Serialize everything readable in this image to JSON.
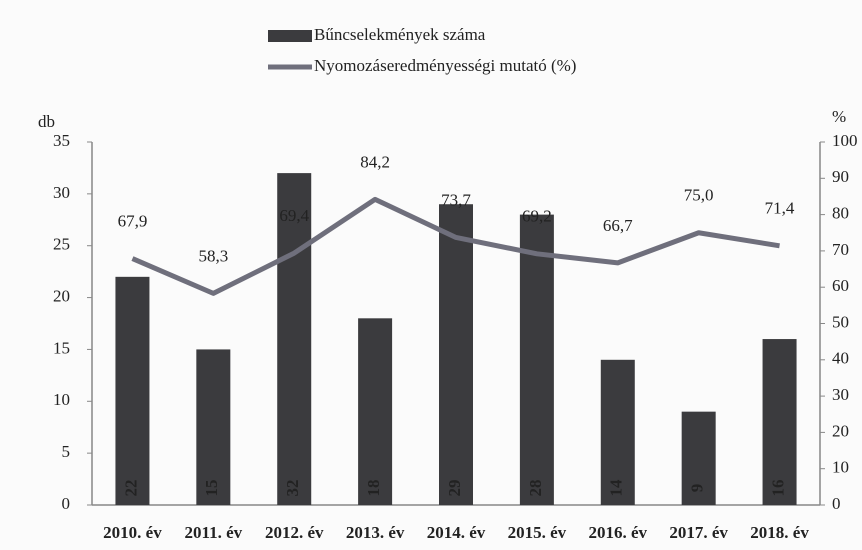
{
  "chart_data": {
    "type": "bar",
    "categories": [
      "2010. év",
      "2011. év",
      "2012. év",
      "2013. év",
      "2014. év",
      "2015. év",
      "2016. év",
      "2017. év",
      "2018. év"
    ],
    "y_label": "db",
    "y2_label": "%",
    "ylim": [
      0,
      35
    ],
    "yticks": [
      0,
      5,
      10,
      15,
      20,
      25,
      30,
      35
    ],
    "y2lim": [
      0,
      100
    ],
    "y2ticks": [
      0,
      10,
      20,
      30,
      40,
      50,
      60,
      70,
      80,
      90,
      100
    ],
    "legend": "top",
    "series": [
      {
        "name": "Bűncselekmények száma",
        "type": "bar",
        "color": "#3b3b3e",
        "values": [
          22,
          15,
          32,
          18,
          29,
          28,
          14,
          9,
          16
        ]
      },
      {
        "name": "Nyomozáseredményességi mutató (%)",
        "type": "line",
        "axis": "y2",
        "color": "#6f6f7c",
        "values": [
          67.9,
          58.3,
          69.4,
          84.2,
          73.7,
          69.2,
          66.7,
          75.0,
          71.4
        ],
        "value_labels": [
          "67,9",
          "58,3",
          "69,4",
          "84,2",
          "73,7",
          "69,2",
          "66,7",
          "75,0",
          "71,4"
        ]
      }
    ]
  }
}
